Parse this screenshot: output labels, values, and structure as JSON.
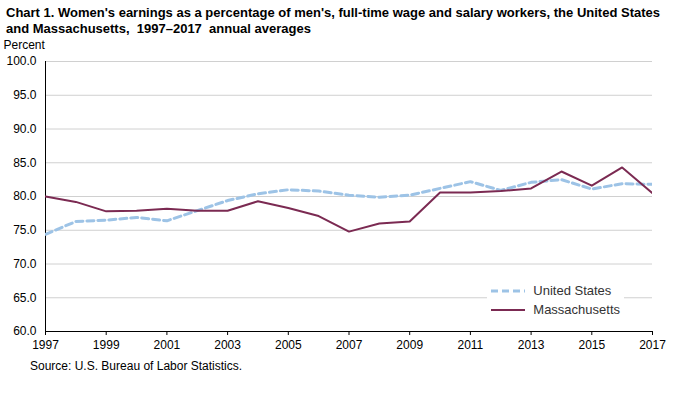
{
  "chart_data": {
    "type": "line",
    "title": "Chart 1. Women's earnings as a percentage of men's, full-time wage and salary workers, the United States and Massachusetts,  1997–2017  annual averages",
    "ylabel": "Percent",
    "source": "Source: U.S. Bureau of Labor Statistics.",
    "x": [
      1997,
      1998,
      1999,
      2000,
      2001,
      2002,
      2003,
      2004,
      2005,
      2006,
      2007,
      2008,
      2009,
      2010,
      2011,
      2012,
      2013,
      2014,
      2015,
      2016,
      2017
    ],
    "series": [
      {
        "name": "United States",
        "color": "#9dc3e6",
        "line_style": "dashed",
        "values": [
          74.4,
          76.3,
          76.5,
          76.9,
          76.4,
          77.9,
          79.4,
          80.4,
          81.0,
          80.8,
          80.2,
          79.9,
          80.2,
          81.2,
          82.2,
          80.9,
          82.1,
          82.5,
          81.1,
          81.9,
          81.8
        ]
      },
      {
        "name": "Massachusetts",
        "color": "#7b2a52",
        "line_style": "solid",
        "values": [
          80.0,
          79.2,
          77.8,
          77.9,
          78.2,
          77.9,
          77.9,
          79.3,
          78.3,
          77.1,
          74.8,
          76.0,
          76.3,
          80.6,
          80.6,
          80.8,
          81.2,
          83.7,
          81.6,
          84.3,
          80.5
        ]
      }
    ],
    "xlim": [
      1997,
      2017
    ],
    "xticks": [
      1997,
      1999,
      2001,
      2003,
      2005,
      2007,
      2009,
      2011,
      2013,
      2015,
      2017
    ],
    "ylim": [
      60,
      100
    ],
    "yticks": [
      {
        "value": 60,
        "label": "60.0"
      },
      {
        "value": 65,
        "label": "65.0"
      },
      {
        "value": 70,
        "label": "70.0"
      },
      {
        "value": 75,
        "label": "75.0"
      },
      {
        "value": 80,
        "label": "80.0"
      },
      {
        "value": 85,
        "label": "85.0"
      },
      {
        "value": 90,
        "label": "90.0"
      },
      {
        "value": 95,
        "label": "95.0"
      },
      {
        "value": 100,
        "label": "100.0"
      }
    ],
    "grid": true,
    "legend": "lower right"
  }
}
